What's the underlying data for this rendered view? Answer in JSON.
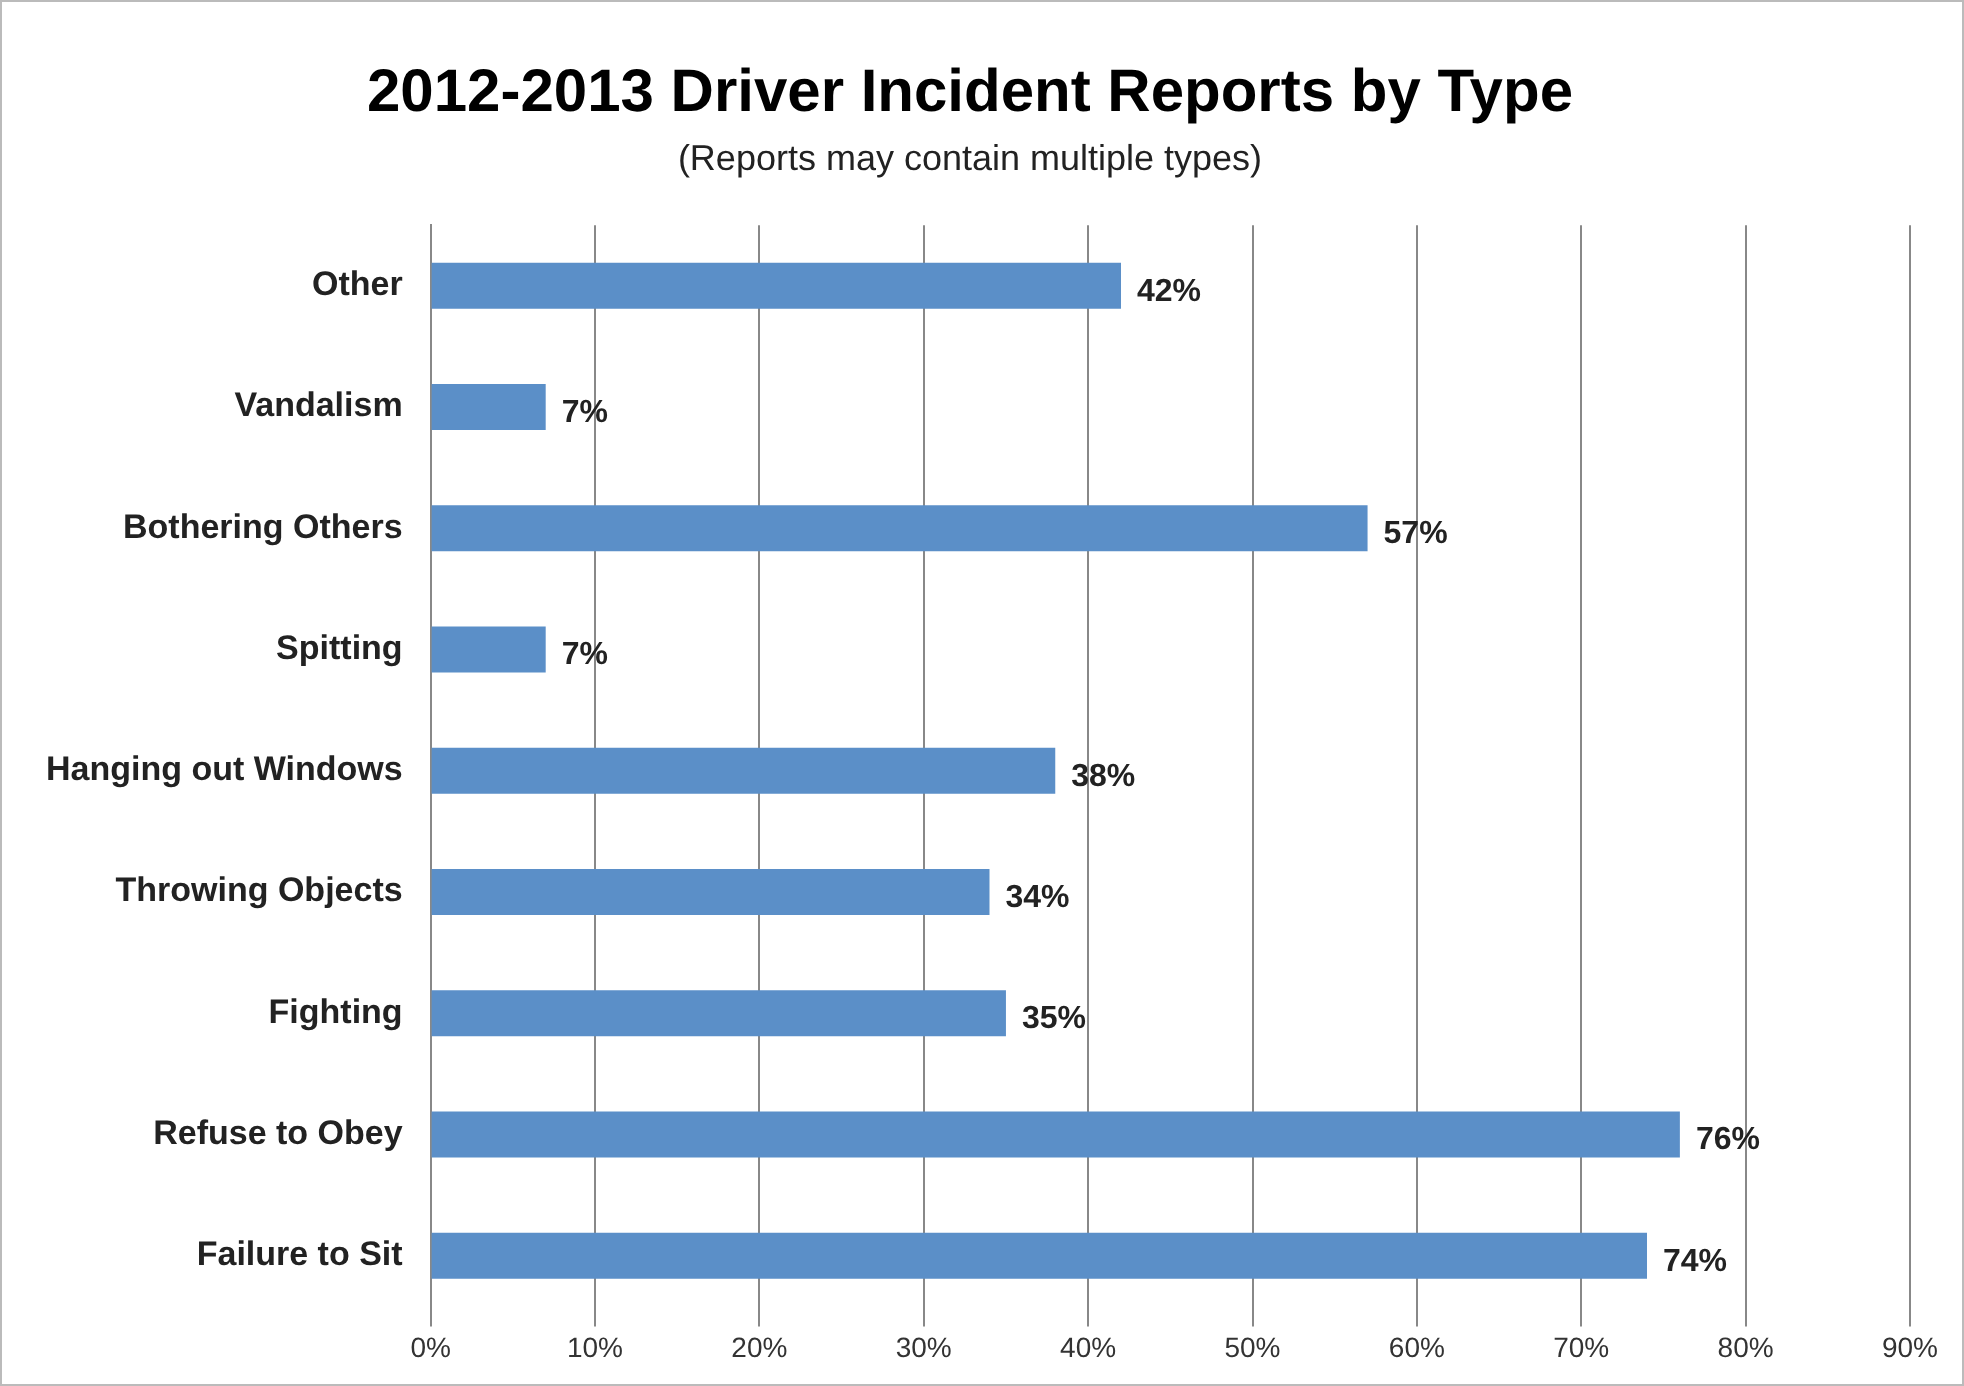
{
  "chart_data": {
    "type": "bar",
    "orientation": "horizontal",
    "title": "2012-2013 Driver Incident Reports by Type",
    "subtitle": "(Reports may contain multiple types)",
    "categories": [
      "Other",
      "Vandalism",
      "Bothering Others",
      "Spitting",
      "Hanging out Windows",
      "Throwing Objects",
      "Fighting",
      "Refuse to Obey",
      "Failure to Sit"
    ],
    "values": [
      42,
      7,
      57,
      7,
      38,
      34,
      35,
      76,
      74
    ],
    "value_labels": [
      "42%",
      "7%",
      "57%",
      "7%",
      "38%",
      "34%",
      "35%",
      "76%",
      "74%"
    ],
    "color": "#5b8fc8",
    "xlim": [
      0,
      90
    ],
    "xticks": [
      {
        "value": 0,
        "label": "0%"
      },
      {
        "value": 10,
        "label": "10%"
      },
      {
        "value": 20,
        "label": "20%"
      },
      {
        "value": 30,
        "label": "30%"
      },
      {
        "value": 40,
        "label": "40%"
      },
      {
        "value": 50,
        "label": "50%"
      },
      {
        "value": 60,
        "label": "60%"
      },
      {
        "value": 70,
        "label": "70%"
      },
      {
        "value": 80,
        "label": "80%"
      },
      {
        "value": 90,
        "label": "90%"
      }
    ],
    "grid": "x",
    "legend": false
  }
}
